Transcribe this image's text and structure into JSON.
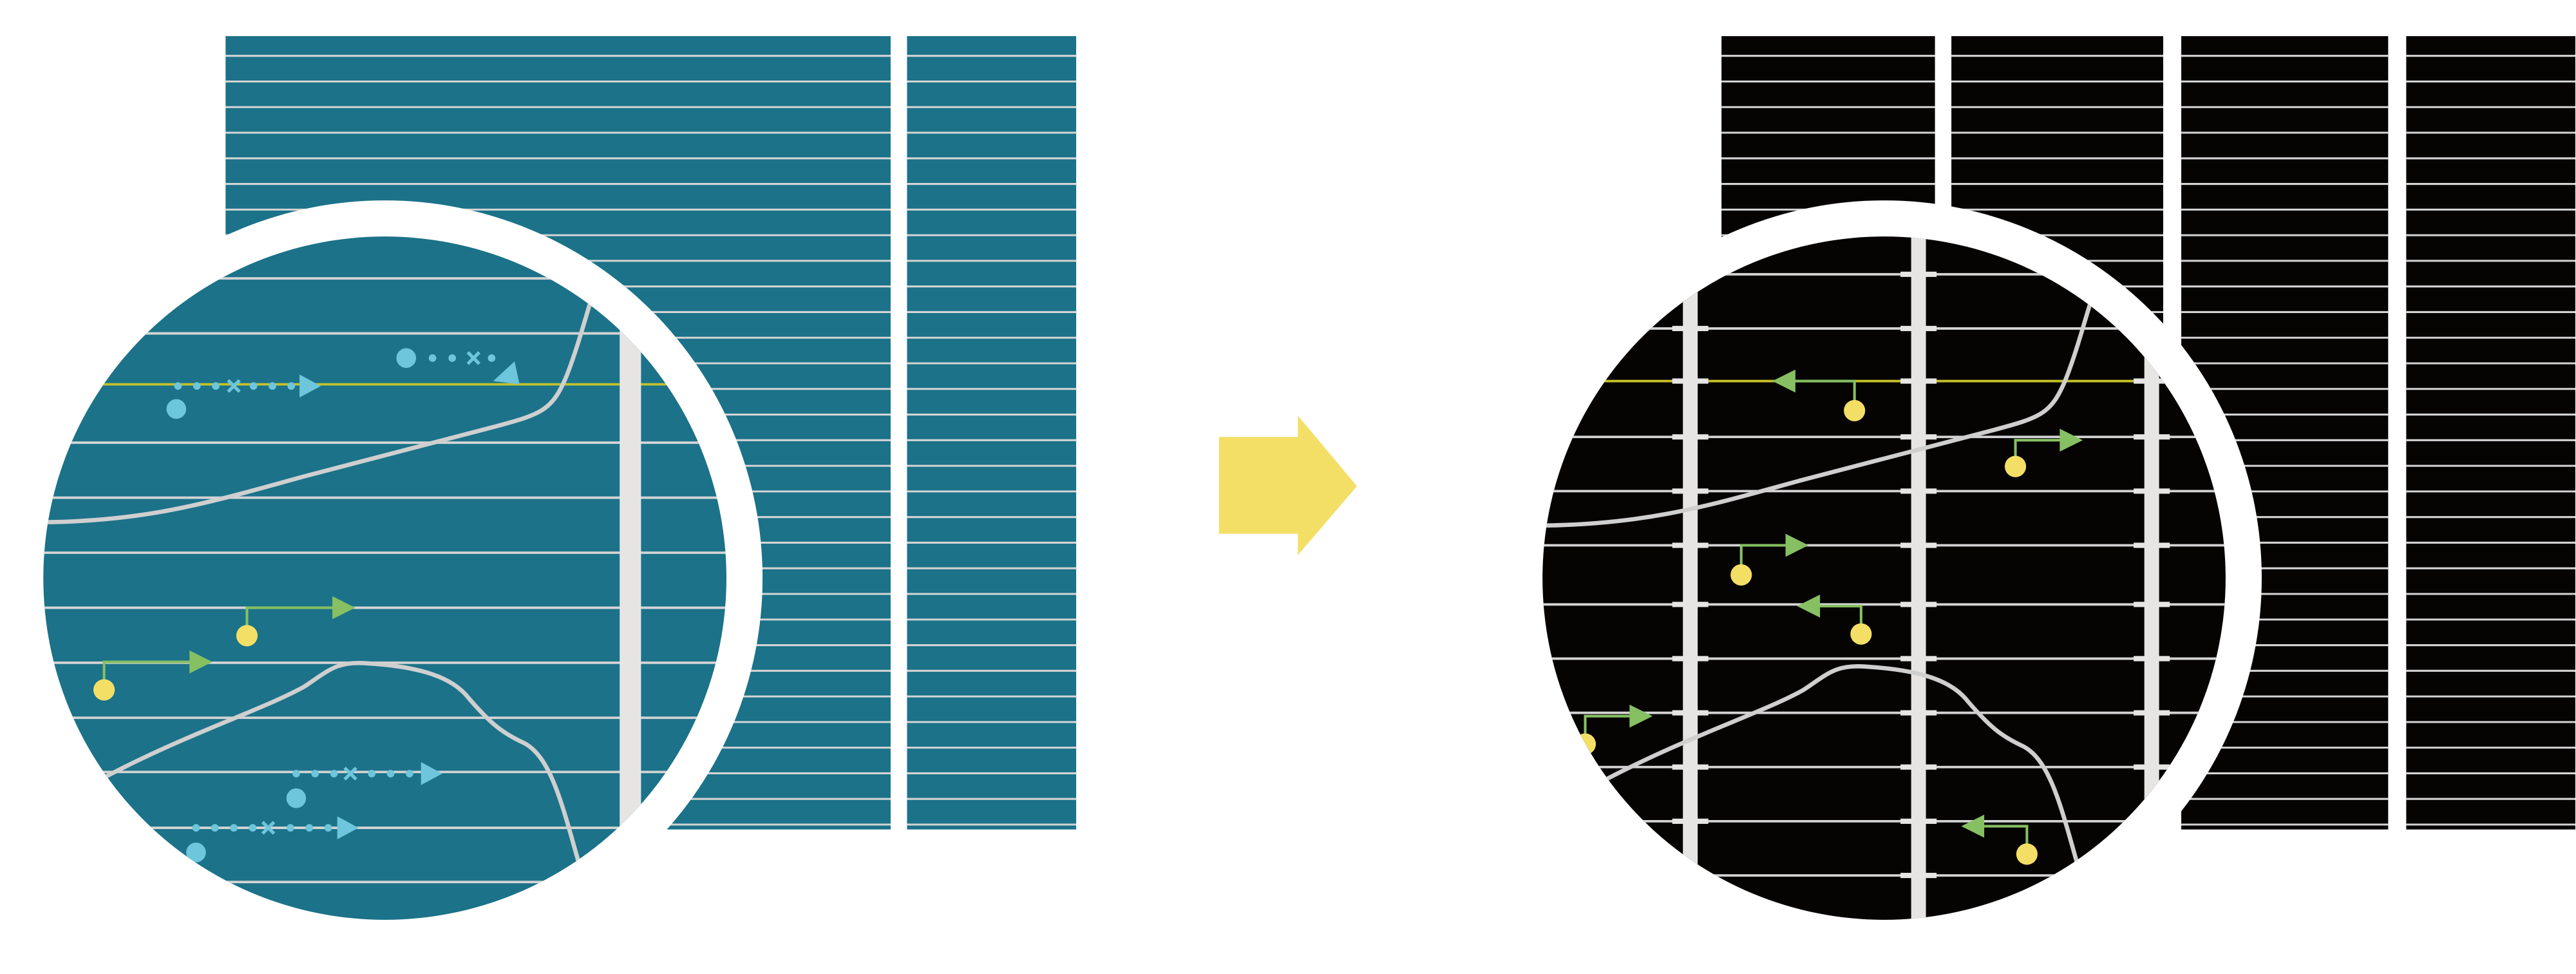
{
  "colors": {
    "teal_panel": "#1b7289",
    "black_panel": "#060303",
    "grid_line": "#d4d4d4",
    "vertical_bar": "#e6e5e3",
    "highlight_line": "#c5c12a",
    "blue_marker": "#6ec6dc",
    "green_arrow": "#86c062",
    "yellow_dot": "#f4df66",
    "transform_arrow": "#f4df66",
    "curve": "#cfcfcf"
  },
  "panels": {
    "before": {
      "style": "teal striped grid with magnified circle, dotted blue trajectories"
    },
    "after": {
      "style": "black segmented grid with magnified circle, green hooked arrows"
    }
  },
  "icons": {
    "transition": "right-arrow-icon"
  }
}
